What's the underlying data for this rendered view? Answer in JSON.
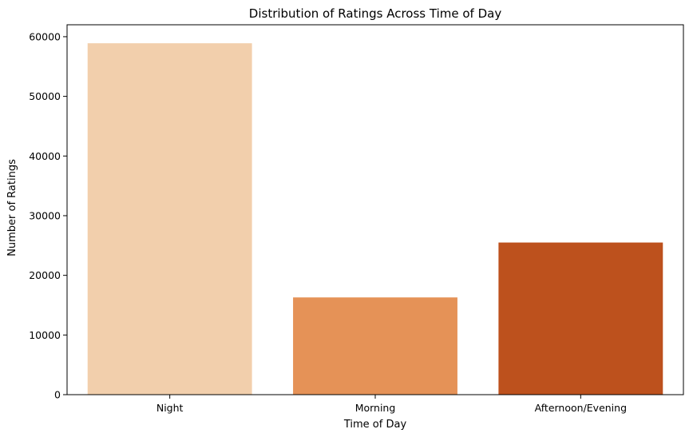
{
  "chart_data": {
    "type": "bar",
    "title": "Distribution of Ratings Across Time of Day",
    "xlabel": "Time of Day",
    "ylabel": "Number of Ratings",
    "categories": [
      "Night",
      "Morning",
      "Afternoon/Evening"
    ],
    "values": [
      58900,
      16300,
      25500
    ],
    "colors": [
      "#f2cfac",
      "#e59257",
      "#bd511d"
    ],
    "ylim": [
      0,
      62000
    ],
    "yticks": [
      0,
      10000,
      20000,
      30000,
      40000,
      50000,
      60000
    ],
    "grid": false,
    "legend": "none"
  }
}
